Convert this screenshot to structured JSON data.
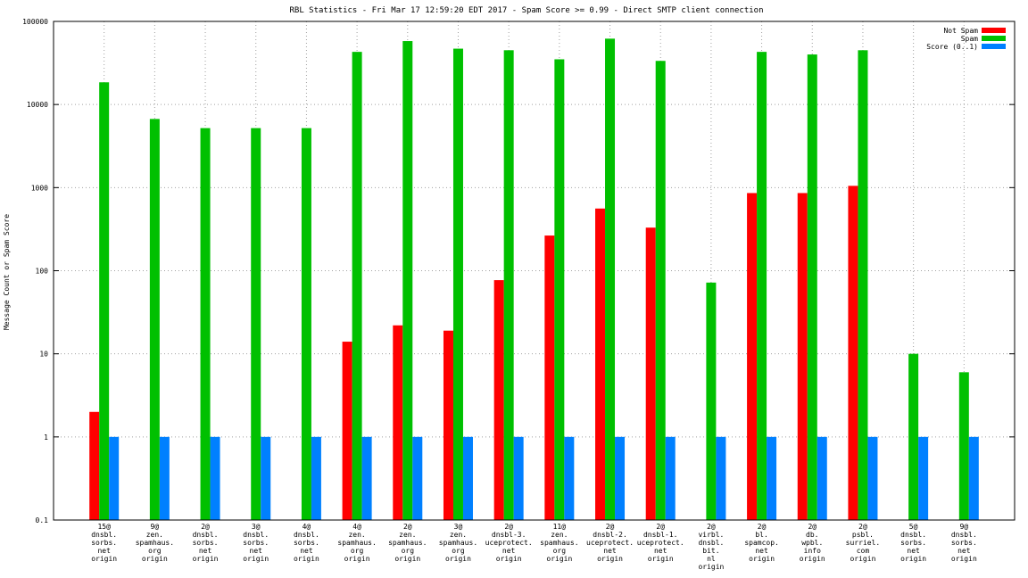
{
  "chart_data": {
    "type": "bar",
    "title": "RBL Statistics - Fri Mar 17 12:59:20 EDT 2017 - Spam Score >= 0.99 - Direct SMTP client connection",
    "xlabel": "",
    "ylabel": "Message Count or Spam Score",
    "yscale": "log",
    "ylim": [
      0.1,
      100000
    ],
    "yticks": [
      "0.1",
      "1",
      "10",
      "100",
      "1000",
      "10000",
      "100000"
    ],
    "grid": true,
    "legend_position": "top-right",
    "categories": [
      [
        "15@",
        "dnsbl.",
        "sorbs.",
        "net",
        "origin"
      ],
      [
        "9@",
        "zen.",
        "spamhaus.",
        "org",
        "origin"
      ],
      [
        "2@",
        "dnsbl.",
        "sorbs.",
        "net",
        "origin"
      ],
      [
        "3@",
        "dnsbl.",
        "sorbs.",
        "net",
        "origin"
      ],
      [
        "4@",
        "dnsbl.",
        "sorbs.",
        "net",
        "origin"
      ],
      [
        "4@",
        "zen.",
        "spamhaus.",
        "org",
        "origin"
      ],
      [
        "2@",
        "zen.",
        "spamhaus.",
        "org",
        "origin"
      ],
      [
        "3@",
        "zen.",
        "spamhaus.",
        "org",
        "origin"
      ],
      [
        "2@",
        "dnsbl-3.",
        "uceprotect.",
        "net",
        "origin"
      ],
      [
        "11@",
        "zen.",
        "spamhaus.",
        "org",
        "origin"
      ],
      [
        "2@",
        "dnsbl-2.",
        "uceprotect.",
        "net",
        "origin"
      ],
      [
        "2@",
        "dnsbl-1.",
        "uceprotect.",
        "net",
        "origin"
      ],
      [
        "2@",
        "virbl.",
        "dnsbl.",
        "bit.",
        "nl",
        "origin"
      ],
      [
        "2@",
        "bl.",
        "spamcop.",
        "net",
        "origin"
      ],
      [
        "2@",
        "db.",
        "wpbl.",
        "info",
        "origin"
      ],
      [
        "2@",
        "psbl.",
        "surriel.",
        "com",
        "origin"
      ],
      [
        "5@",
        "dnsbl.",
        "sorbs.",
        "net",
        "origin"
      ],
      [
        "9@",
        "dnsbl.",
        "sorbs.",
        "net",
        "origin"
      ]
    ],
    "series": [
      {
        "name": "Not Spam",
        "color": "#ff0000",
        "values": [
          2,
          null,
          null,
          null,
          null,
          14,
          22,
          19,
          77,
          265,
          560,
          330,
          null,
          860,
          860,
          1050,
          null,
          null
        ]
      },
      {
        "name": "Spam",
        "color": "#00c000",
        "values": [
          18500,
          6700,
          5200,
          5200,
          5200,
          43000,
          58000,
          47000,
          45000,
          35000,
          62000,
          33500,
          72,
          43000,
          40000,
          45000,
          10,
          6
        ]
      },
      {
        "name": "Score (0..1)",
        "color": "#0080ff",
        "values": [
          1,
          1,
          1,
          1,
          1,
          1,
          1,
          1,
          1,
          1,
          1,
          1,
          1,
          1,
          1,
          1,
          1,
          1
        ]
      }
    ]
  }
}
